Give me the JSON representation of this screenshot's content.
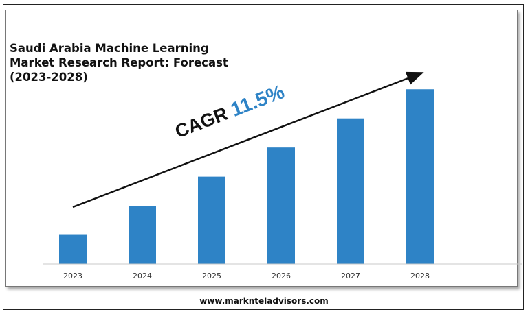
{
  "title_lines": [
    "Saudi Arabia Machine Learning",
    "Market Research Report: Forecast",
    "(2023-2028)"
  ],
  "cagr": {
    "label": "CAGR",
    "value": "11.5%"
  },
  "footer": {
    "url": "www.marknteladvisors.com"
  },
  "chart_data": {
    "type": "bar",
    "title": "Saudi Arabia Machine Learning Market Research Report: Forecast (2023-2028)",
    "categories": [
      "2023",
      "2024",
      "2025",
      "2026",
      "2027",
      "2028"
    ],
    "values": [
      1.0,
      2.0,
      3.0,
      4.0,
      5.0,
      6.0
    ],
    "xlabel": "",
    "ylabel": "",
    "ylim": [
      0,
      6.1
    ],
    "grid": false,
    "legend": "none",
    "colors": {
      "bar": "#2e83c6",
      "value_text": "#2e83c6",
      "arrow": "#111111"
    }
  }
}
